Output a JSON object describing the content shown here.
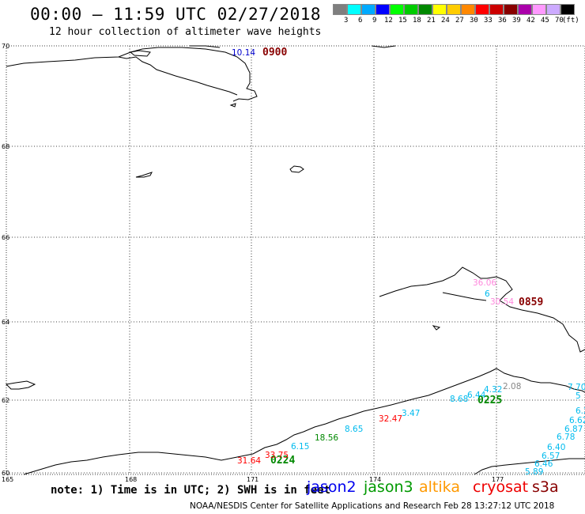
{
  "header": {
    "title": "00:00 – 11:59 UTC 02/27/2018",
    "subtitle": "12 hour collection of altimeter wave heights"
  },
  "color_scale": {
    "unit": "(ft)",
    "colors": [
      "#7f7f7f",
      "#00ffff",
      "#00aaff",
      "#0000ff",
      "#00ff00",
      "#00cc00",
      "#008800",
      "#ffff00",
      "#ffcc00",
      "#ff8800",
      "#ff0000",
      "#cc0000",
      "#880000",
      "#aa00aa",
      "#ff99ff",
      "#ccaaff",
      "#000000"
    ],
    "labels": [
      "3",
      "6",
      "9",
      "12",
      "15",
      "18",
      "21",
      "24",
      "27",
      "30",
      "33",
      "36",
      "39",
      "42",
      "45",
      "70"
    ]
  },
  "map": {
    "lat_labels": [
      "70",
      "68",
      "66",
      "64",
      "62",
      "60"
    ],
    "lon_labels": [
      "165",
      "168",
      "171",
      "174",
      "177"
    ],
    "passes": [
      {
        "time": "0900",
        "color": "#880000"
      },
      {
        "time": "0859",
        "color": "#880000"
      },
      {
        "time": "0225",
        "color": "#008800"
      },
      {
        "time": "0224",
        "color": "#008800"
      }
    ],
    "values": [
      {
        "v": "10.14",
        "color": "#0000cc"
      },
      {
        "v": "36.06",
        "color": "#ff88dd"
      },
      {
        "v": "6",
        "color": "#00bbee"
      },
      {
        "v": "30.54",
        "color": "#ff88dd"
      },
      {
        "v": "2.08",
        "color": "#888888"
      },
      {
        "v": "4.32",
        "color": "#00bbee"
      },
      {
        "v": "6.44",
        "color": "#00bbee"
      },
      {
        "v": "8.68",
        "color": "#00bbee"
      },
      {
        "v": "32.47",
        "color": "#ff0000"
      },
      {
        "v": "3.47",
        "color": "#00bbee"
      },
      {
        "v": "8.65",
        "color": "#00bbee"
      },
      {
        "v": "18.56",
        "color": "#008800"
      },
      {
        "v": "6.15",
        "color": "#00bbee"
      },
      {
        "v": "33.75",
        "color": "#ff0000"
      },
      {
        "v": "31.64",
        "color": "#ff0000"
      },
      {
        "v": "7.70",
        "color": "#00bbee"
      },
      {
        "v": "5",
        "color": "#00bbee"
      },
      {
        "v": "6.2",
        "color": "#00bbee"
      },
      {
        "v": "6.62",
        "color": "#00bbee"
      },
      {
        "v": "6.87",
        "color": "#00bbee"
      },
      {
        "v": "6.78",
        "color": "#00bbee"
      },
      {
        "v": "6.40",
        "color": "#00bbee"
      },
      {
        "v": "6.57",
        "color": "#00bbee"
      },
      {
        "v": "6.46",
        "color": "#00bbee"
      },
      {
        "v": "5.89",
        "color": "#00bbee"
      }
    ]
  },
  "footer": {
    "note": "note: 1) Time is in UTC; 2) SWH is in feet",
    "legend": [
      {
        "name": "jason2",
        "color": "#0000ee"
      },
      {
        "name": "jason3",
        "color": "#009900"
      },
      {
        "name": "altika",
        "color": "#ff9900"
      },
      {
        "name": "cryosat",
        "color": "#ee0000"
      },
      {
        "name": "s3a",
        "color": "#880000"
      }
    ],
    "credit": "NOAA/NESDIS Center for Satellite Applications and Research     Feb 28 13:27:12 UTC 2018"
  }
}
